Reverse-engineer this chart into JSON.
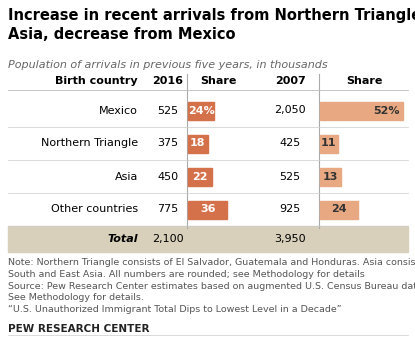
{
  "title": "Increase in recent arrivals from Northern Triangle and\nAsia, decrease from Mexico",
  "subtitle": "Population of arrivals in previous five years, in thousands",
  "rows": [
    {
      "label": "Mexico",
      "val2016": "525",
      "share2016": 24,
      "val2007": "2,050",
      "share2007": 52
    },
    {
      "label": "Northern Triangle",
      "val2016": "375",
      "share2016": 18,
      "val2007": "425",
      "share2007": 11
    },
    {
      "label": "Asia",
      "val2016": "450",
      "share2016": 22,
      "val2007": "525",
      "share2007": 13
    },
    {
      "label": "Other countries",
      "val2016": "775",
      "share2016": 36,
      "val2007": "925",
      "share2007": 24
    }
  ],
  "total_row": {
    "label": "Total",
    "val2016": "2,100",
    "val2007": "3,950"
  },
  "bar_color_dark": "#d4704a",
  "bar_color_light": "#e8a882",
  "total_row_bg": "#d8d0ba",
  "note_text": "Note: Northern Triangle consists of El Salvador, Guatemala and Honduras. Asia consists of\nSouth and East Asia. All numbers are rounded; see Methodology for details\nSource: Pew Research Center estimates based on augmented U.S. Census Bureau data.\nSee Methodology for details.\n“U.S. Unauthorized Immigrant Total Dips to Lowest Level in a Decade”",
  "footer": "PEW RESEARCH CENTER",
  "share_max": 55,
  "title_fontsize": 10.5,
  "subtitle_fontsize": 8,
  "header_fontsize": 8,
  "data_fontsize": 8,
  "note_fontsize": 6.8,
  "footer_fontsize": 7.5
}
